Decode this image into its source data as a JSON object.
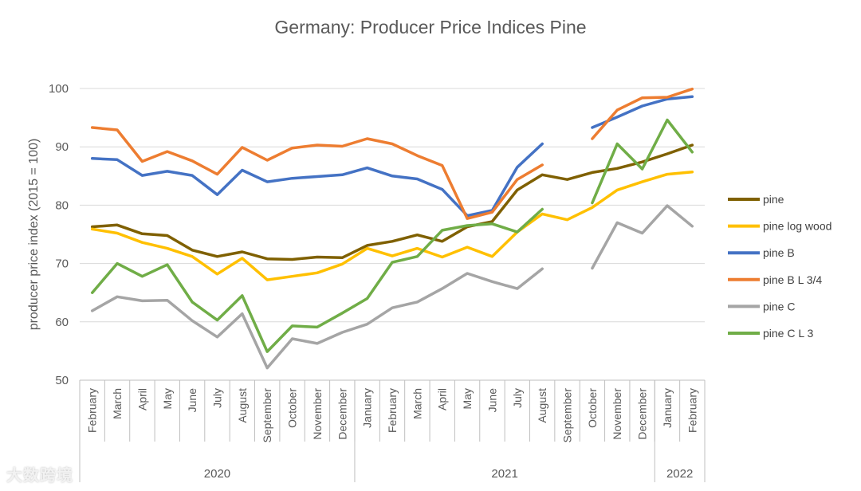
{
  "chart_data": {
    "type": "line",
    "title": "Germany: Producer Price Indices Pine",
    "ylabel": "producer price index (2015 = 100)",
    "xlabel": "",
    "ylim": [
      50,
      100
    ],
    "yticks": [
      50,
      60,
      70,
      80,
      90,
      100
    ],
    "grid": true,
    "legend_position": "right",
    "categories": [
      "February",
      "March",
      "April",
      "May",
      "June",
      "July",
      "August",
      "September",
      "October",
      "November",
      "December",
      "January",
      "February",
      "March",
      "April",
      "May",
      "June",
      "July",
      "August",
      "September",
      "October",
      "November",
      "December",
      "January",
      "February"
    ],
    "year_groups": [
      {
        "label": "2020",
        "start": 0,
        "end": 10
      },
      {
        "label": "2021",
        "start": 11,
        "end": 22
      },
      {
        "label": "2022",
        "start": 23,
        "end": 24
      }
    ],
    "series": [
      {
        "name": "pine",
        "color": "#7f6000",
        "values": [
          76.3,
          76.6,
          75.1,
          74.8,
          72.3,
          71.2,
          72.0,
          70.8,
          70.7,
          71.1,
          71.0,
          73.1,
          73.8,
          74.9,
          73.8,
          76.3,
          77.2,
          82.6,
          85.2,
          84.4,
          85.6,
          86.3,
          87.4,
          88.8,
          90.3
        ]
      },
      {
        "name": "pine log wood",
        "color": "#ffc000",
        "values": [
          75.9,
          75.2,
          73.6,
          72.6,
          71.2,
          68.2,
          70.9,
          67.2,
          67.8,
          68.4,
          69.9,
          72.6,
          71.3,
          72.6,
          71.1,
          72.8,
          71.2,
          75.4,
          78.5,
          77.5,
          79.6,
          82.6,
          84.0,
          85.3,
          85.7
        ]
      },
      {
        "name": "pine B",
        "color": "#4472c4",
        "values": [
          88.0,
          87.8,
          85.1,
          85.8,
          85.1,
          81.8,
          86.0,
          84.0,
          84.6,
          84.9,
          85.2,
          86.4,
          85.0,
          84.5,
          82.7,
          78.2,
          79.1,
          86.5,
          90.5,
          null,
          93.3,
          95.1,
          97.0,
          98.2,
          98.6
        ]
      },
      {
        "name": "pine B L 3/4",
        "color": "#ed7d31",
        "values": [
          93.3,
          92.9,
          87.5,
          89.2,
          87.6,
          85.3,
          89.9,
          87.7,
          89.8,
          90.3,
          90.1,
          91.4,
          90.5,
          88.5,
          86.8,
          77.7,
          78.8,
          84.4,
          86.9,
          null,
          91.4,
          96.3,
          98.4,
          98.5,
          99.9
        ]
      },
      {
        "name": "pine C",
        "color": "#a5a5a5",
        "values": [
          61.9,
          64.3,
          63.6,
          63.7,
          60.2,
          57.4,
          61.4,
          52.1,
          57.1,
          56.3,
          58.2,
          59.6,
          62.4,
          63.4,
          65.7,
          68.3,
          66.9,
          65.7,
          69.1,
          null,
          69.2,
          77.0,
          75.2,
          79.9,
          76.4
        ]
      },
      {
        "name": "pine C L 3",
        "color": "#70ad47",
        "values": [
          65.0,
          70.0,
          67.8,
          69.8,
          63.4,
          60.3,
          64.5,
          54.9,
          59.3,
          59.1,
          61.5,
          64.0,
          70.2,
          71.2,
          75.7,
          76.5,
          76.8,
          75.4,
          79.3,
          null,
          80.4,
          90.5,
          86.2,
          94.6,
          89.1
        ]
      }
    ]
  },
  "watermark": "大数跨境"
}
